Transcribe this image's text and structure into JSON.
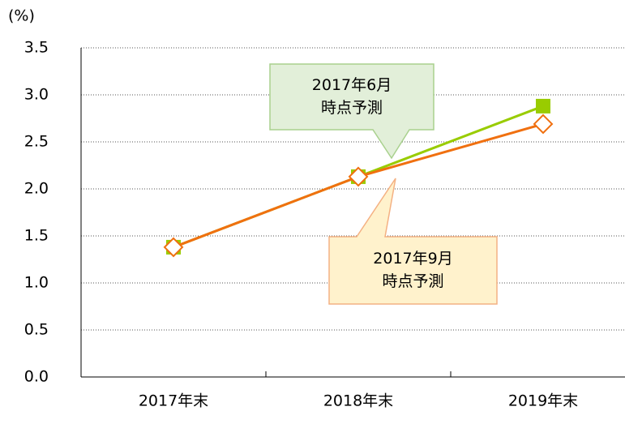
{
  "chart_data": {
    "type": "line",
    "y_unit": "(%)",
    "categories": [
      "2017年末",
      "2018年末",
      "2019年末"
    ],
    "series": [
      {
        "color": "#99cc00",
        "marker": "square",
        "values": [
          1.38,
          2.13,
          2.88
        ]
      },
      {
        "color": "#f07010",
        "marker": "diamond",
        "values": [
          1.38,
          2.13,
          2.69
        ]
      }
    ],
    "ylim": [
      0,
      3.5
    ],
    "yticks": [
      {
        "value": 0,
        "label": "0.0"
      },
      {
        "value": 0.5,
        "label": "0.5"
      },
      {
        "value": 1,
        "label": "1.0"
      },
      {
        "value": 1.5,
        "label": "1.5"
      },
      {
        "value": 2,
        "label": "2.0"
      },
      {
        "value": 2.5,
        "label": "2.5"
      },
      {
        "value": 3,
        "label": "3.0"
      },
      {
        "value": 3.5,
        "label": "3.5"
      }
    ],
    "grid": true,
    "annotations": [
      {
        "lines": [
          "2017年6月",
          "時点予測"
        ],
        "fill": "#e2efd9",
        "border": "#a9d18e"
      },
      {
        "lines": [
          "2017年9月",
          "時点予測"
        ],
        "fill": "#fff2cc",
        "border": "#f4b183"
      }
    ]
  }
}
